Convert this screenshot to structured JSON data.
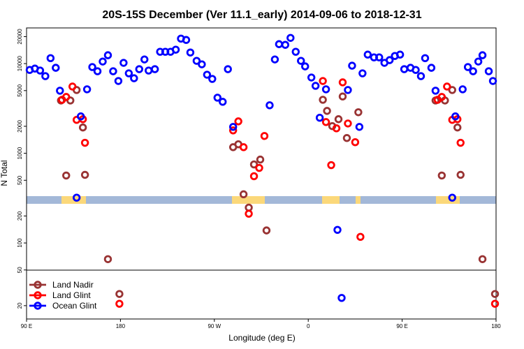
{
  "chart_data": {
    "type": "scatter",
    "title": "20S-15S December (Ver 11.1_early)   2014-09-06 to 2018-12-31",
    "xlabel": "Longitude (deg E)",
    "ylabel": "N Total",
    "xlim": [
      90,
      540
    ],
    "xticks": [
      {
        "value": 90,
        "label": "90 E"
      },
      {
        "value": 180,
        "label": "180"
      },
      {
        "value": 270,
        "label": "90 W"
      },
      {
        "value": 360,
        "label": "0"
      },
      {
        "value": 450,
        "label": "90 E"
      },
      {
        "value": 540,
        "label": "180"
      }
    ],
    "ylim": [
      14.2,
      25000
    ],
    "ylog": true,
    "yticks": [
      20,
      50,
      100,
      200,
      500,
      1000,
      2000,
      5000,
      10000,
      20000
    ],
    "legend": "lower left",
    "series": [
      {
        "name": "Land Nadir",
        "color": "#993333",
        "x": [
          123,
          128,
          132,
          138,
          144,
          146,
          168,
          179,
          288,
          293,
          298,
          303,
          308,
          314,
          320,
          374,
          378,
          383,
          389,
          393,
          397,
          408,
          482,
          488,
          491,
          498,
          503,
          506,
          527,
          539
        ],
        "values": [
          3880,
          565,
          3880,
          5080,
          1940,
          575,
          66,
          27,
          1170,
          1260,
          349,
          248,
          751,
          851,
          138,
          3950,
          2970,
          2010,
          2400,
          4300,
          1480,
          2870,
          3880,
          565,
          3880,
          5080,
          1940,
          575,
          66,
          27
        ]
      },
      {
        "name": "Land Glint",
        "color": "#ff0000",
        "x": [
          124,
          128,
          134,
          138,
          144,
          146,
          179,
          288,
          293,
          298,
          303,
          308,
          313,
          318,
          374,
          377,
          382,
          387,
          393,
          398,
          405,
          410,
          484,
          488,
          493,
          498,
          503,
          506,
          539
        ],
        "values": [
          3950,
          4250,
          5550,
          2360,
          2400,
          1310,
          21,
          1800,
          2270,
          1170,
          212,
          555,
          687,
          1560,
          6400,
          2230,
          738,
          1900,
          6180,
          2150,
          1330,
          117,
          3950,
          4250,
          5550,
          2360,
          2400,
          1310,
          21
        ]
      },
      {
        "name": "Ocean Glint",
        "color": "#0000ff",
        "x": [
          93,
          98,
          103,
          108,
          113,
          118,
          122,
          138,
          142,
          148,
          153,
          158,
          163,
          168,
          173,
          178,
          183,
          188,
          193,
          198,
          203,
          207,
          213,
          218,
          223,
          228,
          233,
          238,
          243,
          247,
          253,
          258,
          263,
          268,
          273,
          278,
          283,
          288,
          323,
          328,
          332,
          338,
          343,
          348,
          353,
          357,
          363,
          367,
          371,
          377,
          388,
          392,
          398,
          402,
          409,
          412,
          417,
          423,
          428,
          433,
          438,
          443,
          448,
          452,
          458,
          463,
          468,
          472,
          478,
          482,
          498,
          501,
          508,
          513,
          518,
          523,
          527,
          533,
          537
        ],
        "values": [
          8500,
          8800,
          8370,
          7250,
          11500,
          8980,
          4990,
          320,
          2580,
          5170,
          9150,
          8220,
          10550,
          12400,
          8220,
          6400,
          10200,
          7790,
          6870,
          8670,
          11130,
          8370,
          8670,
          13550,
          13550,
          13550,
          14300,
          19000,
          18360,
          13300,
          10740,
          9820,
          7520,
          6750,
          4170,
          3750,
          8670,
          1970,
          3430,
          11130,
          16480,
          16190,
          19360,
          13550,
          10740,
          9310,
          7000,
          5650,
          2490,
          5170,
          140,
          24.4,
          5080,
          9480,
          1970,
          7790,
          12600,
          11740,
          11740,
          10200,
          10940,
          12170,
          12600,
          8670,
          8980,
          8500,
          7250,
          11500,
          8980,
          4990,
          320,
          2580,
          5170,
          9150,
          8220,
          10550,
          12400,
          8220,
          6400
        ]
      }
    ]
  }
}
